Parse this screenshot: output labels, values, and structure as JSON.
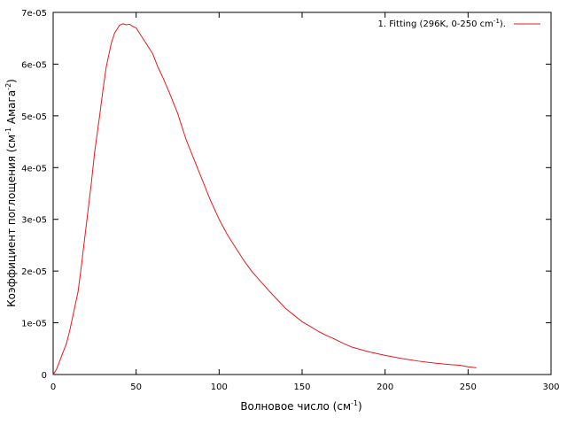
{
  "chart_data": {
    "type": "line",
    "xlabel": "Волновое число (см",
    "xlabel_sup": "-1",
    "xlabel_end": ")",
    "ylabel": "Коэффициент поглощения (см",
    "ylabel_sup1": "-1",
    "ylabel_mid": " Амага",
    "ylabel_sup2": "-2",
    "ylabel_end": ")",
    "xlim": [
      0,
      300
    ],
    "ylim": [
      0,
      7e-05
    ],
    "x_ticks": [
      0,
      50,
      100,
      150,
      200,
      250,
      300
    ],
    "x_tick_labels": [
      "0",
      "50",
      "100",
      "150",
      "200",
      "250",
      "300"
    ],
    "y_ticks": [
      0,
      1e-05,
      2e-05,
      3e-05,
      4e-05,
      5e-05,
      6e-05,
      7e-05
    ],
    "y_tick_labels": [
      "0",
      "1e-05",
      "2e-05",
      "3e-05",
      "4e-05",
      "5e-05",
      "6e-05",
      "7e-05"
    ],
    "grid": false,
    "legend_position": "top-right",
    "series": [
      {
        "name": "1. Fitting (296K, 0-250 cm",
        "name_sup": "-1",
        "name_end": ").",
        "color": "#e41a1c",
        "x": [
          0,
          2,
          5,
          8,
          10,
          13,
          15,
          17,
          20,
          23,
          25,
          28,
          30,
          32,
          35,
          37,
          40,
          42,
          44,
          46,
          48,
          50,
          52,
          55,
          58,
          60,
          63,
          66,
          70,
          75,
          80,
          85,
          90,
          95,
          100,
          105,
          110,
          115,
          120,
          125,
          130,
          135,
          140,
          145,
          150,
          155,
          160,
          165,
          170,
          175,
          180,
          190,
          200,
          210,
          220,
          230,
          240,
          245,
          250,
          255
        ],
        "y": [
          0,
          1e-06,
          3.5e-06,
          6e-06,
          8.5e-06,
          1.3e-05,
          1.6e-05,
          2.1e-05,
          2.9e-05,
          3.7e-05,
          4.3e-05,
          5e-05,
          5.5e-05,
          5.95e-05,
          6.4e-05,
          6.6e-05,
          6.75e-05,
          6.78e-05,
          6.76e-05,
          6.77e-05,
          6.73e-05,
          6.7e-05,
          6.6e-05,
          6.45e-05,
          6.3e-05,
          6.2e-05,
          5.95e-05,
          5.75e-05,
          5.45e-05,
          5.05e-05,
          4.55e-05,
          4.15e-05,
          3.75e-05,
          3.35e-05,
          3e-05,
          2.7e-05,
          2.45e-05,
          2.2e-05,
          1.98e-05,
          1.8e-05,
          1.62e-05,
          1.45e-05,
          1.28e-05,
          1.15e-05,
          1.02e-05,
          9.3e-06,
          8.3e-06,
          7.5e-06,
          6.8e-06,
          6e-06,
          5.3e-06,
          4.4e-06,
          3.7e-06,
          3.1e-06,
          2.6e-06,
          2.2e-06,
          1.9e-06,
          1.8e-06,
          1.5e-06,
          1.3e-06
        ]
      }
    ]
  }
}
